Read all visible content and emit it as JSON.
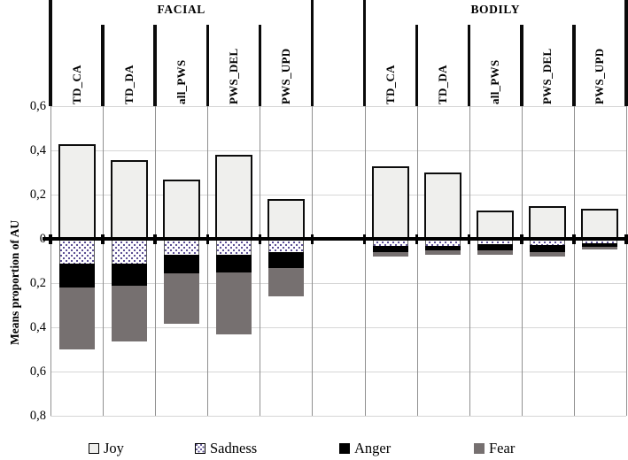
{
  "chart_data": {
    "type": "bar",
    "stacked": true,
    "diverging": true,
    "title": "",
    "ylabel": "Means proportion of AU",
    "ylim": [
      -0.8,
      0.65
    ],
    "grid": true,
    "legend_position": "bottom",
    "y_ticks": [
      {
        "value": 0.6,
        "label": "0,6"
      },
      {
        "value": 0.4,
        "label": "0,4"
      },
      {
        "value": 0.2,
        "label": "0,2"
      },
      {
        "value": 0.0,
        "label": "0"
      },
      {
        "value": -0.2,
        "label": "0,2"
      },
      {
        "value": -0.4,
        "label": "0,4"
      },
      {
        "value": -0.6,
        "label": "0,6"
      },
      {
        "value": -0.8,
        "label": "0,8"
      }
    ],
    "sections": [
      {
        "label": "FACIAL",
        "categories": [
          "TD_CA",
          "TD_DA",
          "all_PWS",
          "PWS_DEL",
          "PWS_UPD"
        ]
      },
      {
        "label": "BODILY",
        "categories": [
          "TD_CA",
          "TD_DA",
          "all_PWS",
          "PWS_DEL",
          "PWS_UPD"
        ]
      }
    ],
    "series": [
      {
        "name": "Joy",
        "direction": "up",
        "style": "light-outlined",
        "values": {
          "FACIAL": [
            0.43,
            0.355,
            0.27,
            0.38,
            0.18
          ],
          "BODILY": [
            0.33,
            0.3,
            0.13,
            0.15,
            0.135
          ]
        }
      },
      {
        "name": "Sadness",
        "direction": "down",
        "style": "dotted-white",
        "values": {
          "FACIAL": [
            0.11,
            0.11,
            0.07,
            0.07,
            0.06
          ],
          "BODILY": [
            0.03,
            0.03,
            0.024,
            0.027,
            0.02
          ]
        }
      },
      {
        "name": "Anger",
        "direction": "down",
        "style": "solid-black",
        "values": {
          "FACIAL": [
            0.11,
            0.1,
            0.085,
            0.08,
            0.07
          ],
          "BODILY": [
            0.03,
            0.022,
            0.027,
            0.033,
            0.016
          ]
        }
      },
      {
        "name": "Fear",
        "direction": "down",
        "style": "solid-gray",
        "values": {
          "FACIAL": [
            0.28,
            0.255,
            0.23,
            0.28,
            0.13
          ],
          "BODILY": [
            0.02,
            0.018,
            0.02,
            0.02,
            0.011
          ]
        }
      }
    ],
    "legend": [
      "Joy",
      "Sadness",
      "Anger",
      "Fear"
    ]
  },
  "colors": {
    "joy_fill": "#efefed",
    "sadness_dot": "#54478e",
    "anger_fill": "#000000",
    "fear_fill": "#767070",
    "h_grid": "#d6d6d6",
    "v_grid": "#909090",
    "axis": "#000000"
  }
}
